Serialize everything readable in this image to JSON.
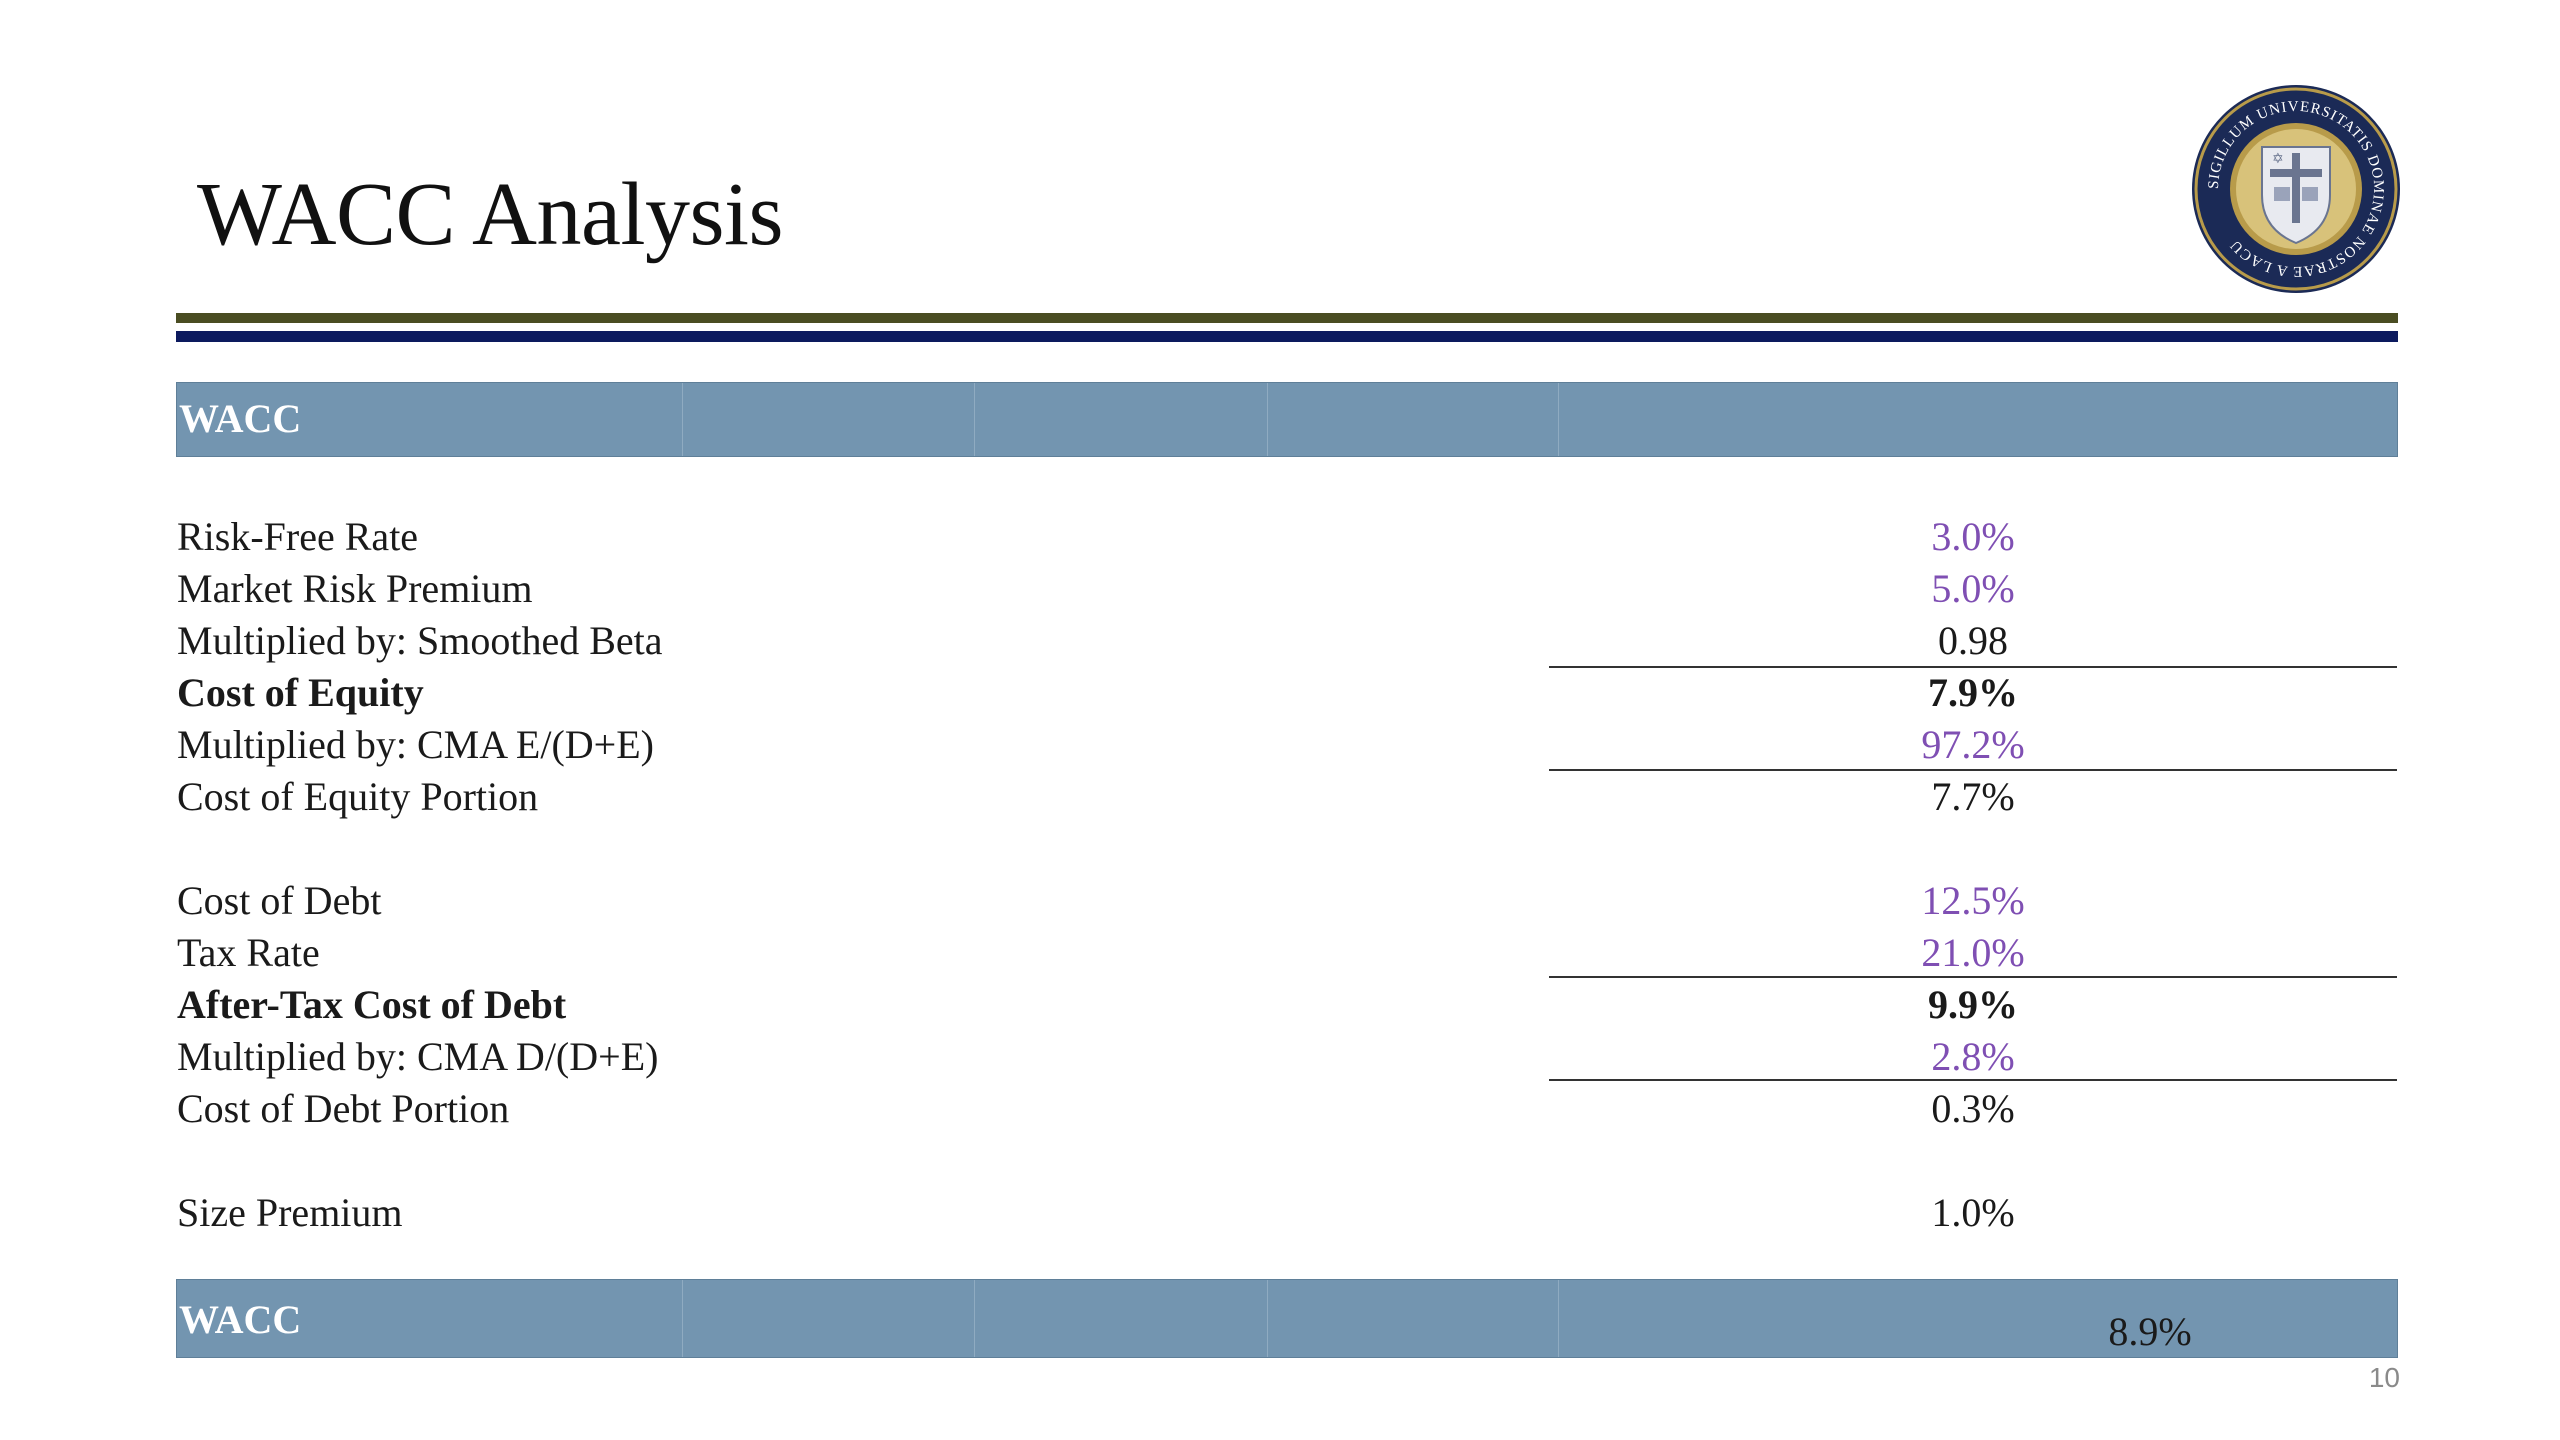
{
  "slide": {
    "title": "WACC Analysis",
    "page_number": "10",
    "seal": {
      "ring_text": "SIGILLUM UNIVERSITATIS DOMINAE NOSTRAE A LACU",
      "colors": {
        "ring": "#1b2a56",
        "gold": "#b89b4a",
        "shield": "#e8eaf0"
      }
    }
  },
  "colors": {
    "band": "#7395b0",
    "rule_olive": "#4a4d22",
    "rule_navy": "#0c1a5e",
    "input_purple": "#7f4fb3"
  },
  "header_band": {
    "label": "WACC"
  },
  "rows": [
    {
      "label": "Risk-Free Rate",
      "value": "3.0%"
    },
    {
      "label": "Market Risk Premium",
      "value": "5.0%"
    },
    {
      "label": "Multiplied by: Smoothed Beta",
      "value": "0.98"
    },
    {
      "label": "Cost of Equity",
      "value": "7.9%"
    },
    {
      "label": "Multiplied by: CMA E/(D+E)",
      "value": "97.2%"
    },
    {
      "label": "Cost of Equity Portion",
      "value": "7.7%"
    },
    {
      "label": "Cost of Debt",
      "value": "12.5%"
    },
    {
      "label": "Tax Rate",
      "value": "21.0%"
    },
    {
      "label": "After-Tax Cost of Debt",
      "value": "9.9%"
    },
    {
      "label": "Multiplied by: CMA D/(D+E)",
      "value": "2.8%"
    },
    {
      "label": "Cost of Debt Portion",
      "value": "0.3%"
    },
    {
      "label": "Size Premium",
      "value": "1.0%"
    }
  ],
  "total_band": {
    "label": "WACC",
    "value": "8.9%"
  }
}
